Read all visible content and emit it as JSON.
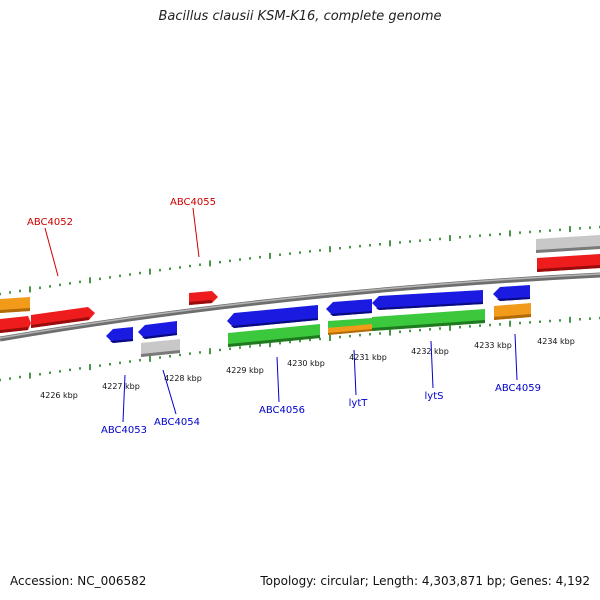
{
  "title": "Bacillus clausii KSM-K16, complete genome",
  "footer": {
    "accession": "Accession: NC_006582",
    "summary": "Topology: circular; Length: 4,303,871 bp; Genes: 4,192"
  },
  "colors": {
    "red": "#ee1c1c",
    "blue": "#1a1ae0",
    "green": "#3cc83c",
    "orange": "#f29a1a",
    "grey": "#c8c8c8",
    "backbone": "#8a8a8a",
    "tick": "#1f7a1f",
    "label_red": "#cc0000",
    "label_blue": "#0000cc"
  },
  "kbp_labels": [
    "4226 kbp",
    "4227 kbp",
    "4228 kbp",
    "4229 kbp",
    "4230 kbp",
    "4231 kbp",
    "4232 kbp",
    "4233 kbp",
    "4234 kbp"
  ],
  "gene_labels": [
    {
      "id": "ABC4052",
      "text": "ABC4052",
      "color": "label_red"
    },
    {
      "id": "ABC4055",
      "text": "ABC4055",
      "color": "label_red"
    },
    {
      "id": "ABC4053",
      "text": "ABC4053",
      "color": "label_blue"
    },
    {
      "id": "ABC4054",
      "text": "ABC4054",
      "color": "label_blue"
    },
    {
      "id": "ABC4056",
      "text": "ABC4056",
      "color": "label_blue"
    },
    {
      "id": "lytT",
      "text": "lytT",
      "color": "label_blue"
    },
    {
      "id": "lytS",
      "text": "lytS",
      "color": "label_blue"
    },
    {
      "id": "ABC4059",
      "text": "ABC4059",
      "color": "label_blue"
    }
  ]
}
